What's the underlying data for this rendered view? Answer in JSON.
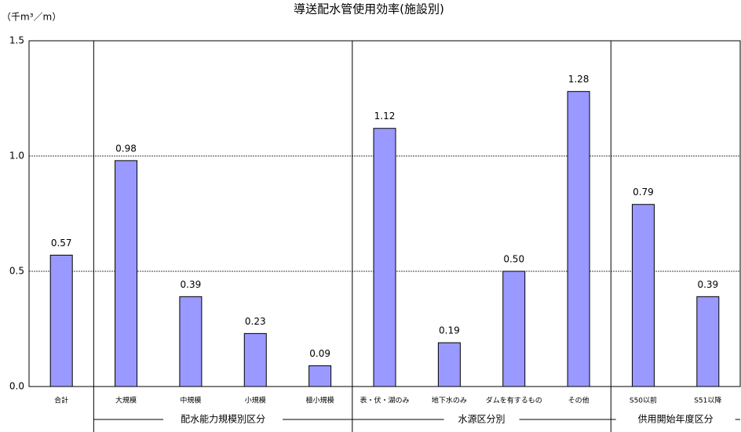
{
  "chart_data": {
    "type": "bar",
    "title": "導送配水管使用効率(施設別)",
    "y_label": "（千m³／m）",
    "categories": [
      "合計",
      "大規模",
      "中規模",
      "小規模",
      "極小規模",
      "表・伏・湖のみ",
      "地下水のみ",
      "ダムを有するもの",
      "その他",
      "S50以前",
      "S51以降"
    ],
    "values": [
      0.57,
      0.98,
      0.39,
      0.23,
      0.09,
      1.12,
      0.19,
      0.5,
      1.28,
      0.79,
      0.39
    ],
    "value_labels": [
      "0.57",
      "0.98",
      "0.39",
      "0.23",
      "0.09",
      "1.12",
      "0.19",
      "0.50",
      "1.28",
      "0.79",
      "0.39"
    ],
    "groups": [
      "配水能力規模別区分",
      "水源区分別",
      "供用開始年度区分"
    ],
    "color": "#9999ff",
    "ylim": [
      0,
      1.5
    ],
    "yticks": [
      {
        "value": 0,
        "label": "0.0"
      },
      0.5,
      {
        "value": 1,
        "label": "1.0"
      },
      1.5
    ],
    "grid": true
  }
}
